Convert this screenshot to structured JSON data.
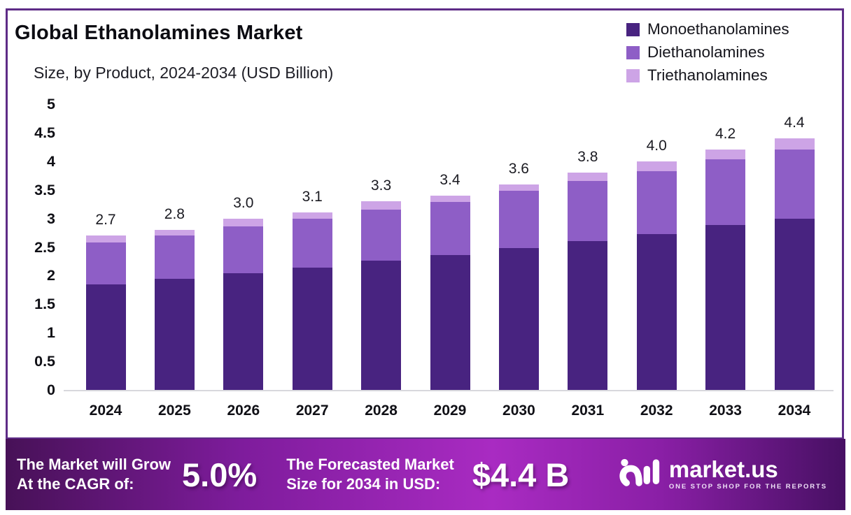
{
  "chart_data": {
    "type": "bar",
    "stacked": true,
    "title": "Global Ethanolamines Market",
    "subtitle": "Size, by Product, 2024-2034 (USD Billion)",
    "unit": "USD Billion",
    "categories": [
      "2024",
      "2025",
      "2026",
      "2027",
      "2028",
      "2029",
      "2030",
      "2031",
      "2032",
      "2033",
      "2034"
    ],
    "series": [
      {
        "name": "Monoethanolamines",
        "color": "#482380",
        "values": [
          1.85,
          1.94,
          2.04,
          2.14,
          2.26,
          2.36,
          2.48,
          2.6,
          2.73,
          2.88,
          3.0
        ]
      },
      {
        "name": "Diethanolamines",
        "color": "#8E5EC6",
        "values": [
          0.73,
          0.76,
          0.82,
          0.86,
          0.89,
          0.93,
          1.0,
          1.05,
          1.1,
          1.15,
          1.2
        ]
      },
      {
        "name": "Triethanolamines",
        "color": "#CDA4E6",
        "values": [
          0.12,
          0.1,
          0.14,
          0.1,
          0.15,
          0.11,
          0.12,
          0.15,
          0.17,
          0.17,
          0.2
        ]
      }
    ],
    "totals_labels": [
      "2.7",
      "2.8",
      "3.0",
      "3.1",
      "3.3",
      "3.4",
      "3.6",
      "3.8",
      "4.0",
      "4.2",
      "4.4"
    ],
    "xlabel": "",
    "ylabel": "",
    "ylim": [
      0,
      5
    ],
    "ytick_values": [
      5,
      4.5,
      4,
      3.5,
      3,
      2.5,
      2,
      1.5,
      1,
      0.5,
      0
    ],
    "ytick_labels": [
      "5",
      "4.5",
      "4",
      "3.5",
      "3",
      "2.5",
      "2",
      "1.5",
      "1",
      "0.5",
      "0"
    ],
    "grid": false,
    "legend_position": "top-right"
  },
  "footer": {
    "cagr_text_line1": "The Market will Grow",
    "cagr_text_line2": "At the CAGR of:",
    "cagr_value": "5.0%",
    "forecast_text_line1": "The Forecasted Market",
    "forecast_text_line2": "Size for 2034 in USD:",
    "forecast_value": "$4.4 B",
    "brand": "market.us",
    "brand_tagline": "ONE STOP SHOP FOR THE REPORTS"
  },
  "colors": {
    "panel_border": "#5E2C87",
    "axis_line": "#D8D8DD",
    "footer_gradient_start": "#471157",
    "footer_gradient_mid": "#A92BC2",
    "footer_gradient_end": "#471063"
  }
}
